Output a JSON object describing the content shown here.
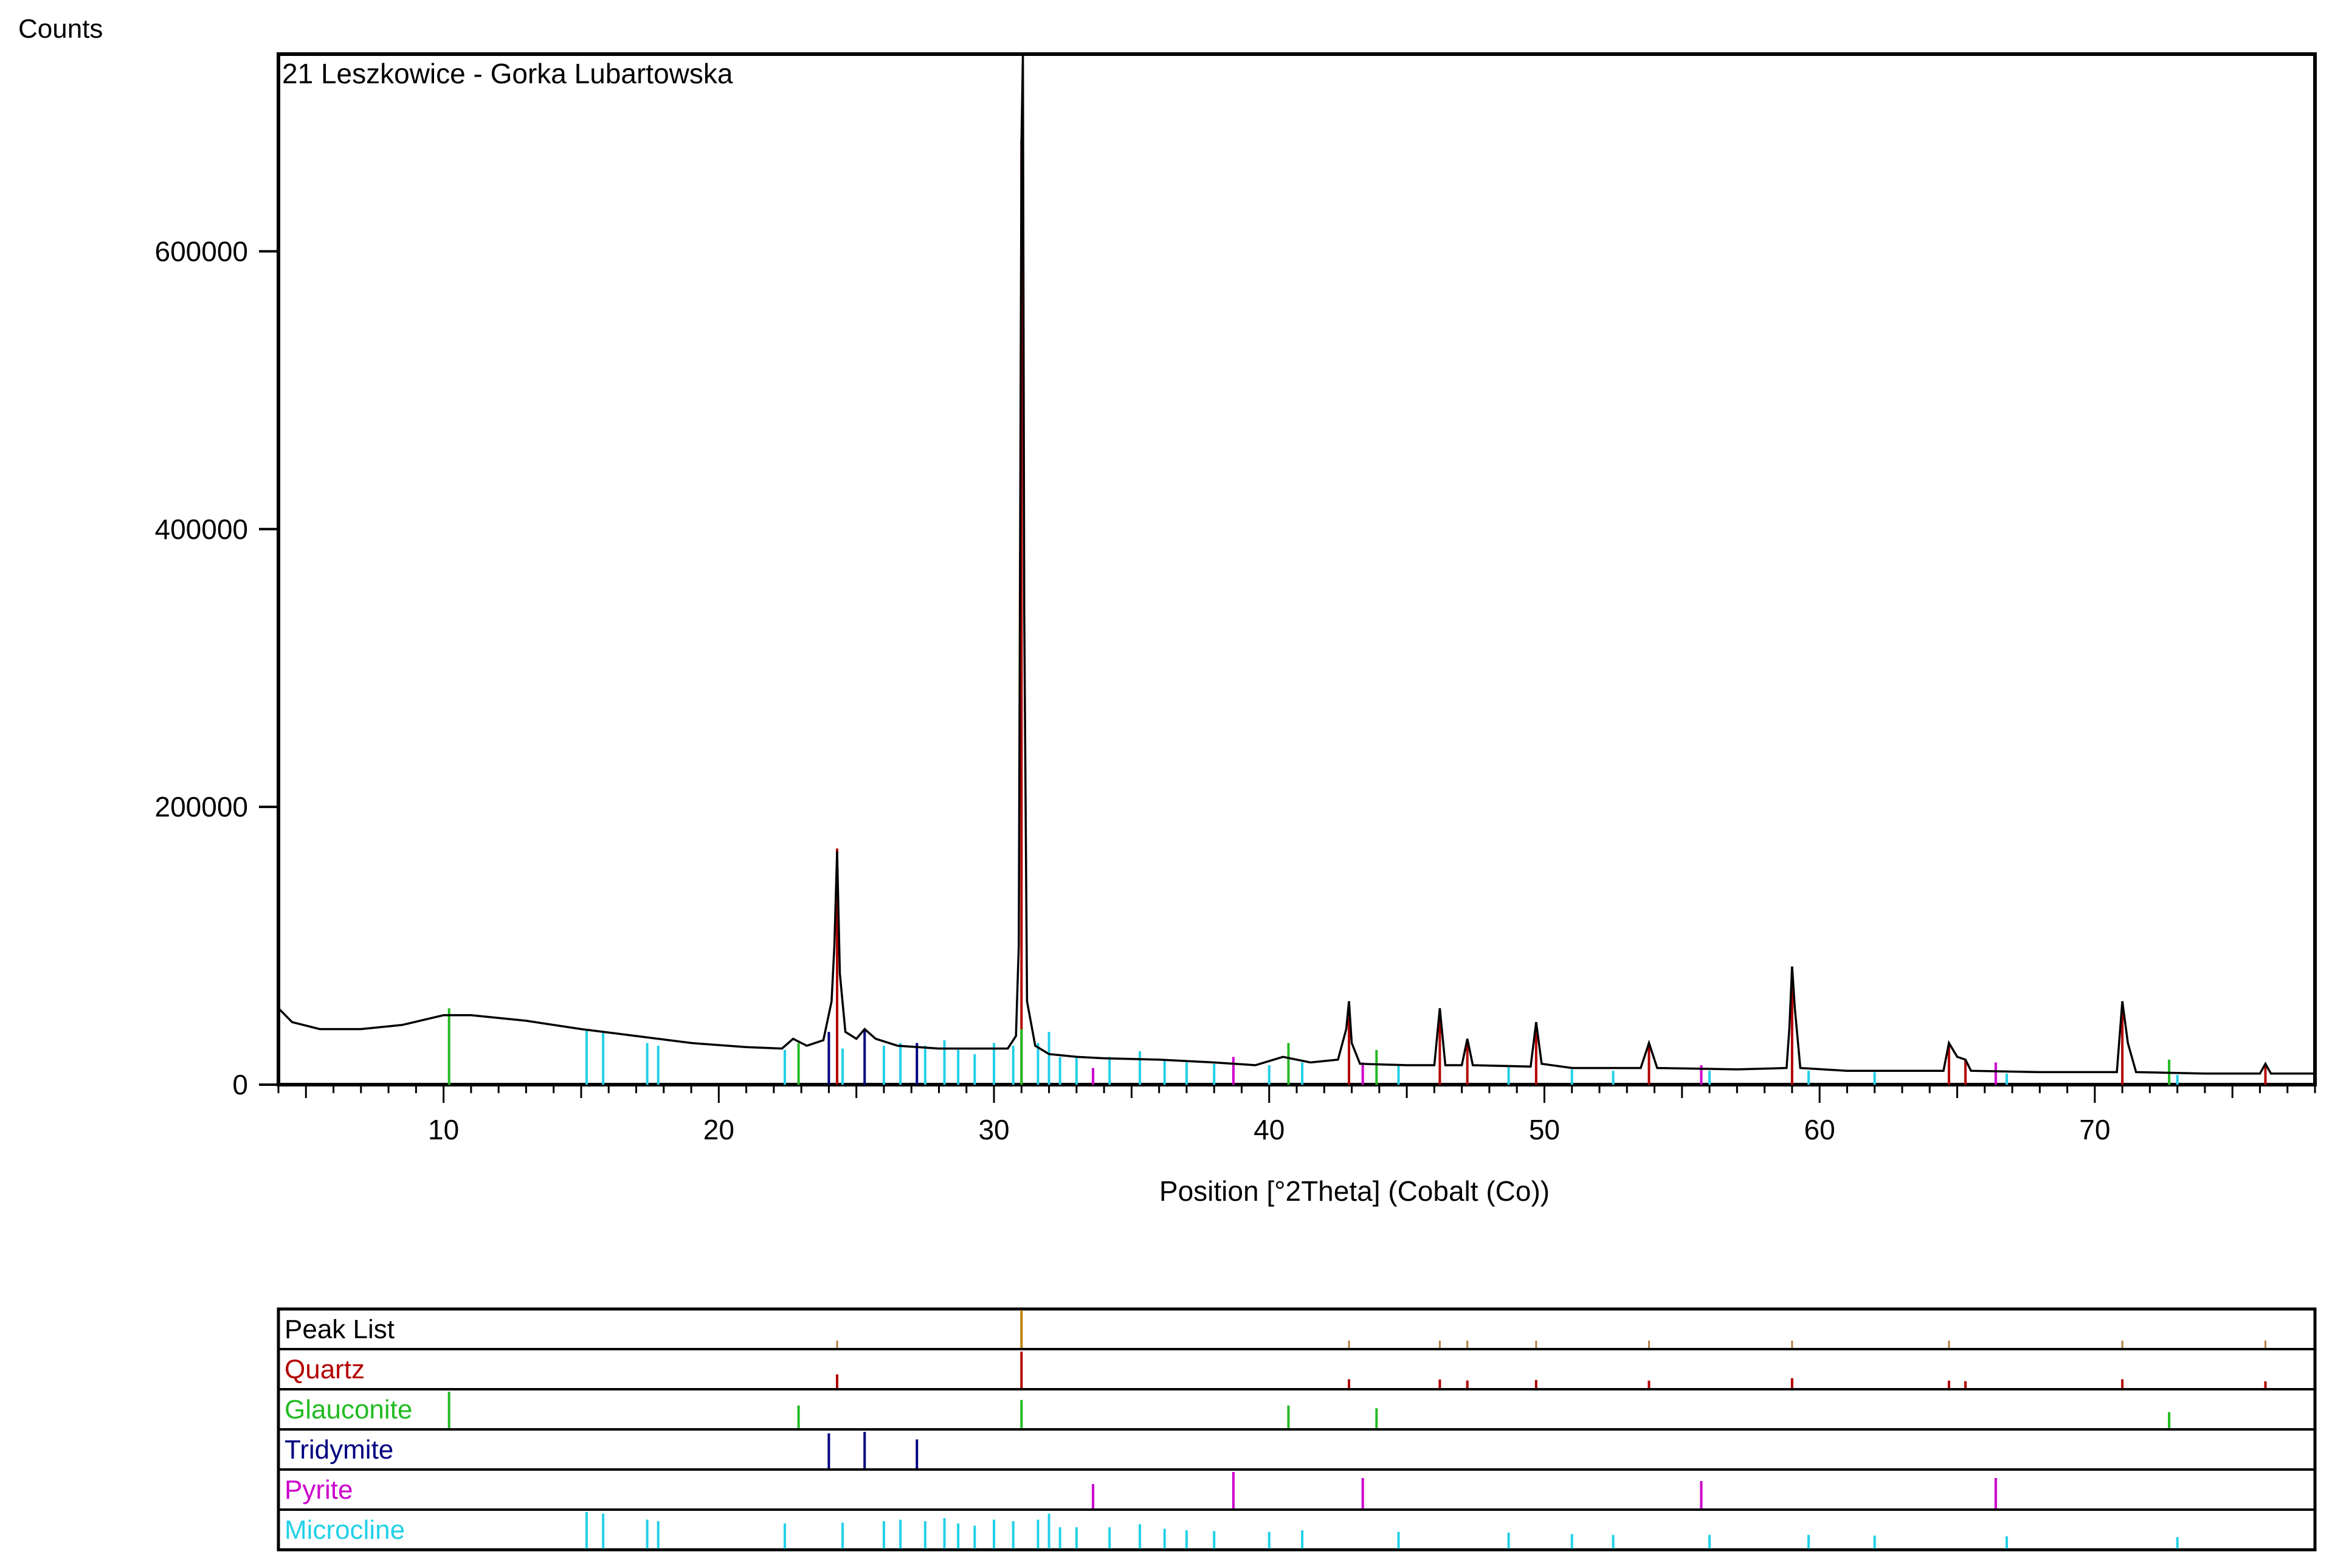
{
  "chart_data": {
    "type": "line",
    "title": "21 Leszkowice - Gorka Lubartowska",
    "xlabel": "Position [°2Theta] (Cobalt (Co))",
    "ylabel": "Counts",
    "xlim": [
      4,
      78
    ],
    "ylim": [
      0,
      742000
    ],
    "xticks": [
      10,
      20,
      30,
      40,
      50,
      60,
      70
    ],
    "yticks": [
      0,
      200000,
      400000,
      600000
    ],
    "xtick_labels": [
      "10",
      "20",
      "30",
      "40",
      "50",
      "60",
      "70"
    ],
    "ytick_labels": [
      "0",
      "200000",
      "400000",
      "600000"
    ],
    "grid": false,
    "series_color": "#000000",
    "pattern": [
      [
        4.0,
        55000
      ],
      [
        4.5,
        45000
      ],
      [
        5.5,
        40000
      ],
      [
        7,
        40000
      ],
      [
        8.5,
        43000
      ],
      [
        10.0,
        50000
      ],
      [
        11,
        50000
      ],
      [
        13,
        46000
      ],
      [
        15,
        40000
      ],
      [
        17,
        35000
      ],
      [
        19,
        30000
      ],
      [
        21,
        27000
      ],
      [
        22.3,
        26000
      ],
      [
        22.7,
        33000
      ],
      [
        23.2,
        28000
      ],
      [
        23.8,
        32000
      ],
      [
        24.1,
        60000
      ],
      [
        24.2,
        100000
      ],
      [
        24.3,
        168000
      ],
      [
        24.4,
        80000
      ],
      [
        24.6,
        38000
      ],
      [
        25.0,
        33000
      ],
      [
        25.3,
        40000
      ],
      [
        25.7,
        33000
      ],
      [
        26.5,
        28000
      ],
      [
        28,
        26000
      ],
      [
        30.5,
        26000
      ],
      [
        30.8,
        35000
      ],
      [
        30.9,
        100000
      ],
      [
        31.0,
        680000
      ],
      [
        31.05,
        742000
      ],
      [
        31.1,
        340000
      ],
      [
        31.2,
        60000
      ],
      [
        31.5,
        28000
      ],
      [
        32,
        22000
      ],
      [
        33,
        20000
      ],
      [
        34,
        19000
      ],
      [
        36,
        18000
      ],
      [
        38,
        16000
      ],
      [
        39.5,
        14000
      ],
      [
        40.5,
        20000
      ],
      [
        41.5,
        16000
      ],
      [
        42.5,
        18000
      ],
      [
        42.8,
        40000
      ],
      [
        42.9,
        60000
      ],
      [
        43.0,
        30000
      ],
      [
        43.3,
        15000
      ],
      [
        45,
        14000
      ],
      [
        46.0,
        14000
      ],
      [
        46.2,
        55000
      ],
      [
        46.4,
        14000
      ],
      [
        47.0,
        14000
      ],
      [
        47.2,
        33000
      ],
      [
        47.4,
        14000
      ],
      [
        49.5,
        13000
      ],
      [
        49.7,
        45000
      ],
      [
        49.9,
        15000
      ],
      [
        51,
        12000
      ],
      [
        53.5,
        12000
      ],
      [
        53.8,
        30000
      ],
      [
        54.1,
        12000
      ],
      [
        57,
        11000
      ],
      [
        58.8,
        12000
      ],
      [
        58.9,
        40000
      ],
      [
        59.0,
        85000
      ],
      [
        59.1,
        55000
      ],
      [
        59.3,
        12000
      ],
      [
        61,
        10000
      ],
      [
        64.5,
        10000
      ],
      [
        64.7,
        30000
      ],
      [
        65.0,
        20000
      ],
      [
        65.3,
        18000
      ],
      [
        65.5,
        10000
      ],
      [
        68,
        9000
      ],
      [
        70.8,
        9000
      ],
      [
        71.0,
        60000
      ],
      [
        71.2,
        30000
      ],
      [
        71.5,
        9000
      ],
      [
        74,
        8000
      ],
      [
        76.0,
        8000
      ],
      [
        76.2,
        15000
      ],
      [
        76.4,
        8000
      ],
      [
        78,
        8000
      ]
    ],
    "phase_sticks": [
      {
        "name": "Quartz",
        "color": "#b30000",
        "sticks": [
          [
            24.3,
            170000
          ],
          [
            31.0,
            680000
          ],
          [
            42.9,
            60000
          ],
          [
            46.2,
            55000
          ],
          [
            47.2,
            33000
          ],
          [
            49.7,
            45000
          ],
          [
            53.8,
            30000
          ],
          [
            59.0,
            85000
          ],
          [
            64.7,
            30000
          ],
          [
            65.3,
            18000
          ],
          [
            71.0,
            60000
          ],
          [
            76.2,
            15000
          ]
        ]
      },
      {
        "name": "Glauconite",
        "color": "#22bb22",
        "sticks": [
          [
            10.2,
            55000
          ],
          [
            22.9,
            30000
          ],
          [
            31.0,
            40000
          ],
          [
            40.7,
            30000
          ],
          [
            43.9,
            25000
          ],
          [
            72.7,
            18000
          ]
        ]
      },
      {
        "name": "Tridymite",
        "color": "#000080",
        "sticks": [
          [
            24.0,
            38000
          ],
          [
            25.3,
            40000
          ],
          [
            27.2,
            30000
          ]
        ]
      },
      {
        "name": "Pyrite",
        "color": "#cc00cc",
        "sticks": [
          [
            33.6,
            12000
          ],
          [
            38.7,
            20000
          ],
          [
            43.4,
            16000
          ],
          [
            55.7,
            14000
          ],
          [
            66.4,
            16000
          ]
        ]
      },
      {
        "name": "Microcline",
        "color": "#22d0e8",
        "sticks": [
          [
            15.2,
            40000
          ],
          [
            15.8,
            38000
          ],
          [
            17.4,
            30000
          ],
          [
            17.8,
            28000
          ],
          [
            22.4,
            25000
          ],
          [
            24.5,
            26000
          ],
          [
            26.0,
            28000
          ],
          [
            26.6,
            30000
          ],
          [
            27.5,
            28000
          ],
          [
            28.2,
            32000
          ],
          [
            28.7,
            25000
          ],
          [
            29.3,
            22000
          ],
          [
            30.0,
            30000
          ],
          [
            30.7,
            28000
          ],
          [
            31.6,
            30000
          ],
          [
            32.0,
            38000
          ],
          [
            32.4,
            20000
          ],
          [
            33.0,
            20000
          ],
          [
            34.2,
            20000
          ],
          [
            35.3,
            24000
          ],
          [
            36.2,
            18000
          ],
          [
            37.0,
            16000
          ],
          [
            38.0,
            15000
          ],
          [
            40.0,
            14000
          ],
          [
            41.2,
            16000
          ],
          [
            44.7,
            14000
          ],
          [
            48.7,
            13000
          ],
          [
            51.0,
            11000
          ],
          [
            52.5,
            10000
          ],
          [
            56.0,
            10000
          ],
          [
            59.6,
            10000
          ],
          [
            62.0,
            9000
          ],
          [
            66.8,
            8000
          ],
          [
            73.0,
            7000
          ]
        ]
      }
    ],
    "peak_list": [
      24.3,
      31.0,
      42.9,
      46.2,
      47.2,
      49.7,
      53.8,
      59.0,
      64.7,
      71.0,
      76.2
    ]
  }
}
